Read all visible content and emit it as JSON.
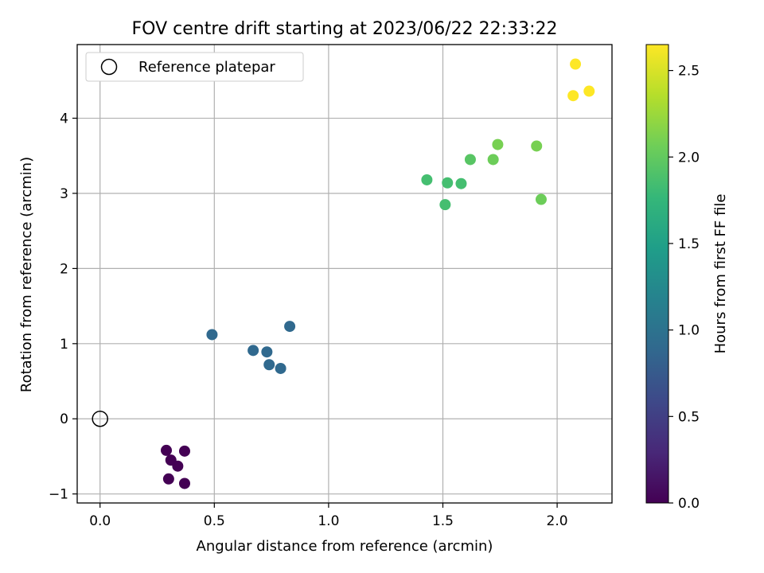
{
  "chart_data": {
    "type": "scatter",
    "title": "FOV centre drift starting at 2023/06/22 22:33:22",
    "xlabel": "Angular distance from reference (arcmin)",
    "ylabel": "Rotation from reference (arcmin)",
    "xlim": [
      -0.1,
      2.24
    ],
    "ylim": [
      -1.12,
      4.98
    ],
    "xticks": [
      0.0,
      0.5,
      1.0,
      1.5,
      2.0
    ],
    "xtick_labels": [
      "0.0",
      "0.5",
      "1.0",
      "1.5",
      "2.0"
    ],
    "yticks": [
      -1,
      0,
      1,
      2,
      3,
      4
    ],
    "ytick_labels": [
      "−1",
      "0",
      "1",
      "2",
      "3",
      "4"
    ],
    "grid": true,
    "legend": {
      "placement": "top-left",
      "entries": [
        "Reference platepar"
      ]
    },
    "reference_point": {
      "x": 0.0,
      "y": 0.0,
      "marker": "open-circle",
      "color": "#000000"
    },
    "colorbar": {
      "label": "Hours from first FF file",
      "range": [
        0.0,
        2.65
      ],
      "ticks": [
        0.0,
        0.5,
        1.0,
        1.5,
        2.0,
        2.5
      ],
      "tick_labels": [
        "0.0",
        "0.5",
        "1.0",
        "1.5",
        "2.0",
        "2.5"
      ],
      "colormap": "viridis",
      "colors": [
        "#440154",
        "#482878",
        "#3e4989",
        "#31688e",
        "#26828e",
        "#1f9e89",
        "#35b779",
        "#6ece58",
        "#b5de2b",
        "#fde725"
      ]
    },
    "points": [
      {
        "x": 0.29,
        "y": -0.42,
        "hours": 0.0
      },
      {
        "x": 0.31,
        "y": -0.55,
        "hours": 0.0
      },
      {
        "x": 0.34,
        "y": -0.63,
        "hours": 0.0
      },
      {
        "x": 0.37,
        "y": -0.43,
        "hours": 0.0
      },
      {
        "x": 0.3,
        "y": -0.8,
        "hours": 0.0
      },
      {
        "x": 0.37,
        "y": -0.86,
        "hours": 0.0
      },
      {
        "x": 0.49,
        "y": 1.12,
        "hours": 0.9
      },
      {
        "x": 0.67,
        "y": 0.91,
        "hours": 0.9
      },
      {
        "x": 0.73,
        "y": 0.89,
        "hours": 0.9
      },
      {
        "x": 0.74,
        "y": 0.72,
        "hours": 0.9
      },
      {
        "x": 0.79,
        "y": 0.67,
        "hours": 0.9
      },
      {
        "x": 0.83,
        "y": 1.23,
        "hours": 0.9
      },
      {
        "x": 1.43,
        "y": 3.18,
        "hours": 1.85
      },
      {
        "x": 1.52,
        "y": 3.14,
        "hours": 1.85
      },
      {
        "x": 1.51,
        "y": 2.85,
        "hours": 1.85
      },
      {
        "x": 1.58,
        "y": 3.13,
        "hours": 1.85
      },
      {
        "x": 1.62,
        "y": 3.45,
        "hours": 1.95
      },
      {
        "x": 1.72,
        "y": 3.45,
        "hours": 2.05
      },
      {
        "x": 1.74,
        "y": 3.65,
        "hours": 2.1
      },
      {
        "x": 1.91,
        "y": 3.63,
        "hours": 2.1
      },
      {
        "x": 1.93,
        "y": 2.92,
        "hours": 2.05
      },
      {
        "x": 2.08,
        "y": 4.72,
        "hours": 2.65
      },
      {
        "x": 2.07,
        "y": 4.3,
        "hours": 2.65
      },
      {
        "x": 2.14,
        "y": 4.36,
        "hours": 2.65
      }
    ]
  }
}
